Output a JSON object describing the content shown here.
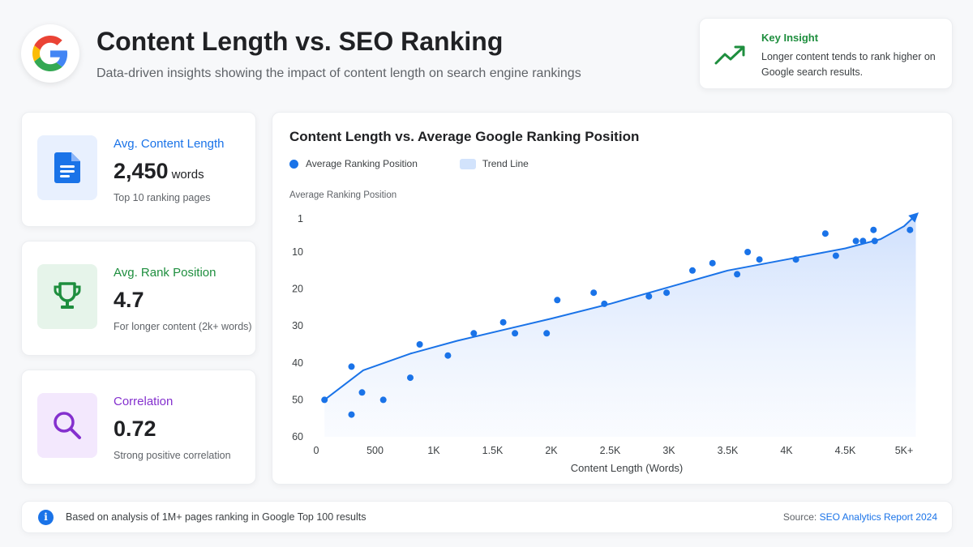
{
  "header": {
    "title": "Content Length vs. SEO Ranking",
    "subtitle": "Data-driven insights showing the impact of content length on search engine rankings",
    "logo_icon": "google-g-logo"
  },
  "insight": {
    "title": "Key Insight",
    "text": "Longer content tends to rank higher on Google search results.",
    "icon": "trending-up-icon",
    "color": "#1e8e3e"
  },
  "stats": [
    {
      "label": "Avg. Content Length",
      "value": "2,450",
      "unit": "words",
      "note": "Top 10 ranking pages",
      "icon": "document-icon",
      "color": "#1a73e8",
      "bg": "#e8f0fe"
    },
    {
      "label": "Avg. Rank Position",
      "value": "4.7",
      "unit": "",
      "note": "For longer content (2k+ words)",
      "icon": "trophy-icon",
      "color": "#1e8e3e",
      "bg": "#e6f4ea"
    },
    {
      "label": "Correlation",
      "value": "0.72",
      "unit": "",
      "note": "Strong positive correlation",
      "icon": "search-icon",
      "color": "#8430ce",
      "bg": "#f3e8fd"
    }
  ],
  "chart": {
    "title": "Content Length vs. Average Google Ranking Position",
    "legend_points": "Average Ranking Position",
    "legend_trend": "Trend Line"
  },
  "chart_data": {
    "type": "scatter",
    "title": "Content Length vs. Average Google Ranking Position",
    "xlabel": "Content Length (Words)",
    "ylabel": "Average Ranking Position",
    "xlim": [
      0,
      5000
    ],
    "ylim": [
      60,
      1
    ],
    "y_inverted": true,
    "x_ticks": [
      {
        "value": 0,
        "label": "0"
      },
      {
        "value": 500,
        "label": "500"
      },
      {
        "value": 1000,
        "label": "1K"
      },
      {
        "value": 1500,
        "label": "1.5K"
      },
      {
        "value": 2000,
        "label": "2K"
      },
      {
        "value": 2500,
        "label": "2.5K"
      },
      {
        "value": 3000,
        "label": "3K"
      },
      {
        "value": 3500,
        "label": "3.5K"
      },
      {
        "value": 4000,
        "label": "4K"
      },
      {
        "value": 4500,
        "label": "4.5K"
      },
      {
        "value": 5000,
        "label": "5K+"
      }
    ],
    "y_ticks": [
      1,
      10,
      20,
      30,
      40,
      50,
      60
    ],
    "legend": "top-left",
    "grid": false,
    "colors": {
      "points": "#1a73e8",
      "trend": "#1a73e8",
      "area": "#d2e3fc"
    },
    "series": [
      {
        "name": "Average Ranking Position",
        "points": [
          [
            70,
            50
          ],
          [
            300,
            54
          ],
          [
            300,
            41
          ],
          [
            390,
            48
          ],
          [
            570,
            50
          ],
          [
            800,
            44
          ],
          [
            880,
            35
          ],
          [
            1120,
            38
          ],
          [
            1340,
            32
          ],
          [
            1590,
            29
          ],
          [
            1690,
            32
          ],
          [
            1960,
            32
          ],
          [
            2050,
            23
          ],
          [
            2360,
            21
          ],
          [
            2450,
            24
          ],
          [
            2830,
            22
          ],
          [
            2980,
            21
          ],
          [
            3200,
            15
          ],
          [
            3370,
            13
          ],
          [
            3580,
            16
          ],
          [
            3670,
            10
          ],
          [
            3770,
            12
          ],
          [
            4080,
            12
          ],
          [
            4330,
            5
          ],
          [
            4420,
            11
          ],
          [
            4590,
            7
          ],
          [
            4650,
            7
          ],
          [
            4740,
            4
          ],
          [
            4750,
            7
          ],
          [
            5050,
            4
          ]
        ]
      },
      {
        "name": "Trend Line",
        "points": [
          [
            70,
            50
          ],
          [
            400,
            42
          ],
          [
            800,
            37.5
          ],
          [
            1200,
            34
          ],
          [
            1600,
            31
          ],
          [
            2000,
            28
          ],
          [
            2500,
            24
          ],
          [
            3000,
            19.5
          ],
          [
            3500,
            15
          ],
          [
            4000,
            12
          ],
          [
            4500,
            9
          ],
          [
            4800,
            6.5
          ],
          [
            5000,
            3
          ],
          [
            5100,
            0
          ]
        ]
      }
    ]
  },
  "footer": {
    "note": "Based on analysis of 1M+ pages ranking in Google Top 100 results",
    "source_label": "Source:",
    "source_link": "SEO Analytics Report 2024",
    "info_icon": "i"
  }
}
